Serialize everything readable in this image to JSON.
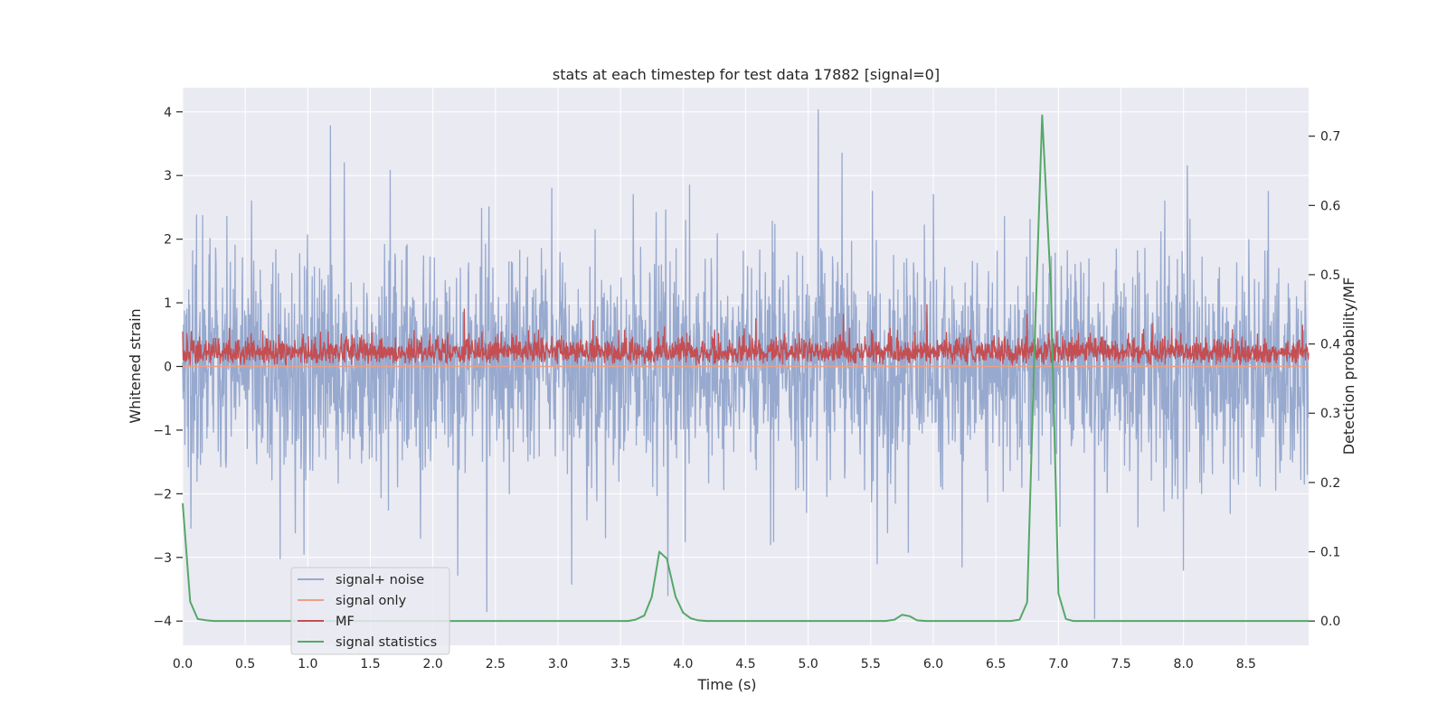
{
  "chart_data": {
    "type": "line",
    "title": "stats at each timestep for test data 17882 [signal=0]",
    "xlabel": "Time (s)",
    "ylabel": "Whitened strain",
    "y2label": "Detection probability/MF",
    "xlim": [
      0,
      9.0
    ],
    "ylim": [
      -4.38,
      4.38
    ],
    "y2lim": [
      -0.035,
      0.77
    ],
    "grid": true,
    "xticks": [
      0.0,
      0.5,
      1.0,
      1.5,
      2.0,
      2.5,
      3.0,
      3.5,
      4.0,
      4.5,
      5.0,
      5.5,
      6.0,
      6.5,
      7.0,
      7.5,
      8.0,
      8.5
    ],
    "xtick_labels": [
      "0.0",
      "0.5",
      "1.0",
      "1.5",
      "2.0",
      "2.5",
      "3.0",
      "3.5",
      "4.0",
      "4.5",
      "5.0",
      "5.5",
      "6.0",
      "6.5",
      "7.0",
      "7.5",
      "8.0",
      "8.5"
    ],
    "yticks": [
      4,
      3,
      2,
      1,
      0,
      -1,
      -2,
      -3,
      -4
    ],
    "ytick_labels": [
      "4",
      "3",
      "2",
      "1",
      "0",
      "−1",
      "−2",
      "−3",
      "−4"
    ],
    "y2ticks": [
      0.7,
      0.6,
      0.5,
      0.4,
      0.3,
      0.2,
      0.1,
      0.0
    ],
    "y2tick_labels": [
      "0.7",
      "0.6",
      "0.5",
      "0.4",
      "0.3",
      "0.2",
      "0.1",
      "0.0"
    ],
    "legend_position": "lower-left",
    "series": [
      {
        "name": "signal+ noise",
        "axis": "left",
        "color": "#97a9ce",
        "kind": "noise",
        "amplitude": 1.0,
        "spikes": [
          {
            "x": 1.18,
            "y": 3.78
          },
          {
            "x": 1.29,
            "y": 3.2
          },
          {
            "x": 1.66,
            "y": 3.08
          },
          {
            "x": 5.08,
            "y": 4.03
          },
          {
            "x": 5.27,
            "y": 3.35
          },
          {
            "x": 8.03,
            "y": 3.15
          },
          {
            "x": 0.55,
            "y": 2.6
          },
          {
            "x": 2.95,
            "y": 2.8
          },
          {
            "x": 3.6,
            "y": 2.7
          },
          {
            "x": 4.05,
            "y": 2.85
          },
          {
            "x": 6.0,
            "y": 2.7
          },
          {
            "x": 7.85,
            "y": 2.6
          },
          {
            "x": 0.78,
            "y": -3.02
          },
          {
            "x": 0.97,
            "y": -2.95
          },
          {
            "x": 2.43,
            "y": -3.85
          },
          {
            "x": 2.2,
            "y": -3.28
          },
          {
            "x": 3.11,
            "y": -3.42
          },
          {
            "x": 3.88,
            "y": -3.6
          },
          {
            "x": 5.55,
            "y": -3.1
          },
          {
            "x": 5.8,
            "y": -2.92
          },
          {
            "x": 6.23,
            "y": -3.15
          },
          {
            "x": 7.29,
            "y": -3.96
          },
          {
            "x": 8.0,
            "y": -3.2
          },
          {
            "x": 4.7,
            "y": -2.8
          },
          {
            "x": 1.9,
            "y": -2.7
          }
        ]
      },
      {
        "name": "signal only",
        "axis": "left",
        "color": "#ee9f84",
        "kind": "flat",
        "value": 0.0
      },
      {
        "name": "MF",
        "axis": "left",
        "color": "#c44e52",
        "kind": "band",
        "base": 0.0,
        "level": 0.3,
        "spikes": [
          {
            "x": 0.0,
            "y": 0.55
          },
          {
            "x": 2.25,
            "y": 0.9
          },
          {
            "x": 3.28,
            "y": 0.72
          },
          {
            "x": 4.58,
            "y": 0.75
          },
          {
            "x": 5.28,
            "y": 0.82
          },
          {
            "x": 5.95,
            "y": 0.97
          },
          {
            "x": 6.75,
            "y": 0.82
          },
          {
            "x": 7.75,
            "y": 0.68
          },
          {
            "x": 3.85,
            "y": 0.62
          },
          {
            "x": 8.95,
            "y": 0.65
          }
        ]
      },
      {
        "name": "signal statistics",
        "axis": "right",
        "color": "#55a868",
        "kind": "line",
        "x": [
          0.0,
          0.06,
          0.12,
          0.19,
          0.25,
          0.5,
          1.0,
          1.5,
          2.0,
          2.5,
          3.0,
          3.5,
          3.56,
          3.62,
          3.69,
          3.75,
          3.81,
          3.87,
          3.94,
          4.0,
          4.06,
          4.12,
          4.19,
          4.25,
          4.5,
          5.0,
          5.5,
          5.62,
          5.69,
          5.75,
          5.81,
          5.87,
          5.94,
          6.0,
          6.25,
          6.5,
          6.62,
          6.69,
          6.75,
          6.81,
          6.87,
          6.94,
          7.0,
          7.06,
          7.12,
          7.25,
          7.5,
          8.0,
          8.5,
          9.0
        ],
        "y": [
          0.17,
          0.028,
          0.003,
          0.001,
          0.0,
          0.0,
          0.0,
          0.0,
          0.0,
          0.0,
          0.0,
          0.0,
          0.0,
          0.002,
          0.008,
          0.035,
          0.1,
          0.09,
          0.035,
          0.012,
          0.004,
          0.001,
          0.0,
          0.0,
          0.0,
          0.0,
          0.0,
          0.0,
          0.002,
          0.009,
          0.007,
          0.001,
          0.0,
          0.0,
          0.0,
          0.0,
          0.0,
          0.002,
          0.027,
          0.4,
          0.73,
          0.48,
          0.04,
          0.003,
          0.0,
          0.0,
          0.0,
          0.0,
          0.0,
          0.0
        ]
      }
    ]
  }
}
